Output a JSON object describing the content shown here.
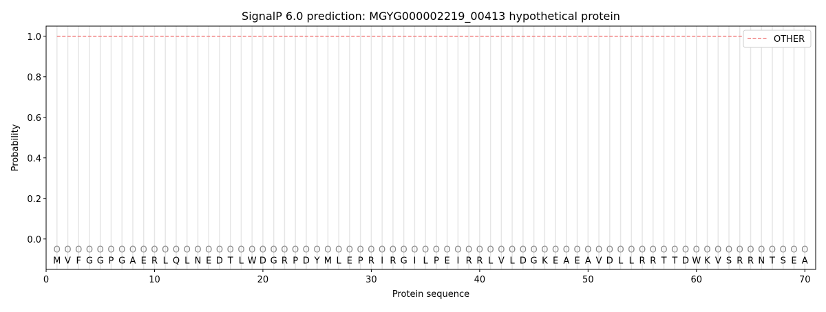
{
  "chart_data": {
    "type": "line",
    "title": "SignalP 6.0 prediction: MGYG000002219_00413 hypothetical protein",
    "xlabel": "Protein sequence",
    "ylabel": "Probability",
    "xlim": [
      0,
      71
    ],
    "ylim": [
      -0.15,
      1.05
    ],
    "xticks": [
      0,
      10,
      20,
      30,
      40,
      50,
      60,
      70
    ],
    "yticks": [
      0.0,
      0.2,
      0.4,
      0.6,
      0.8,
      1.0
    ],
    "sequence": "MVFGGPGAERLQLNEDTLWDGRPDYMLEPRIRGILPEIRRLVLDGKEAEAVDLLRRTTDWKVSRRNTSEA",
    "region_labels": "OOOOOOOOOOOOOOOOOOOOOOOOOOOOOOOOOOOOOOOOOOOOOOOOOOOOOOOOOOOOOOOOOOOOOO",
    "series": [
      {
        "name": "OTHER",
        "color": "#f08080",
        "style": "dashed",
        "x_range": [
          1,
          70
        ],
        "value": 1.0
      }
    ],
    "legend_placement": "upper right",
    "grid": false
  }
}
